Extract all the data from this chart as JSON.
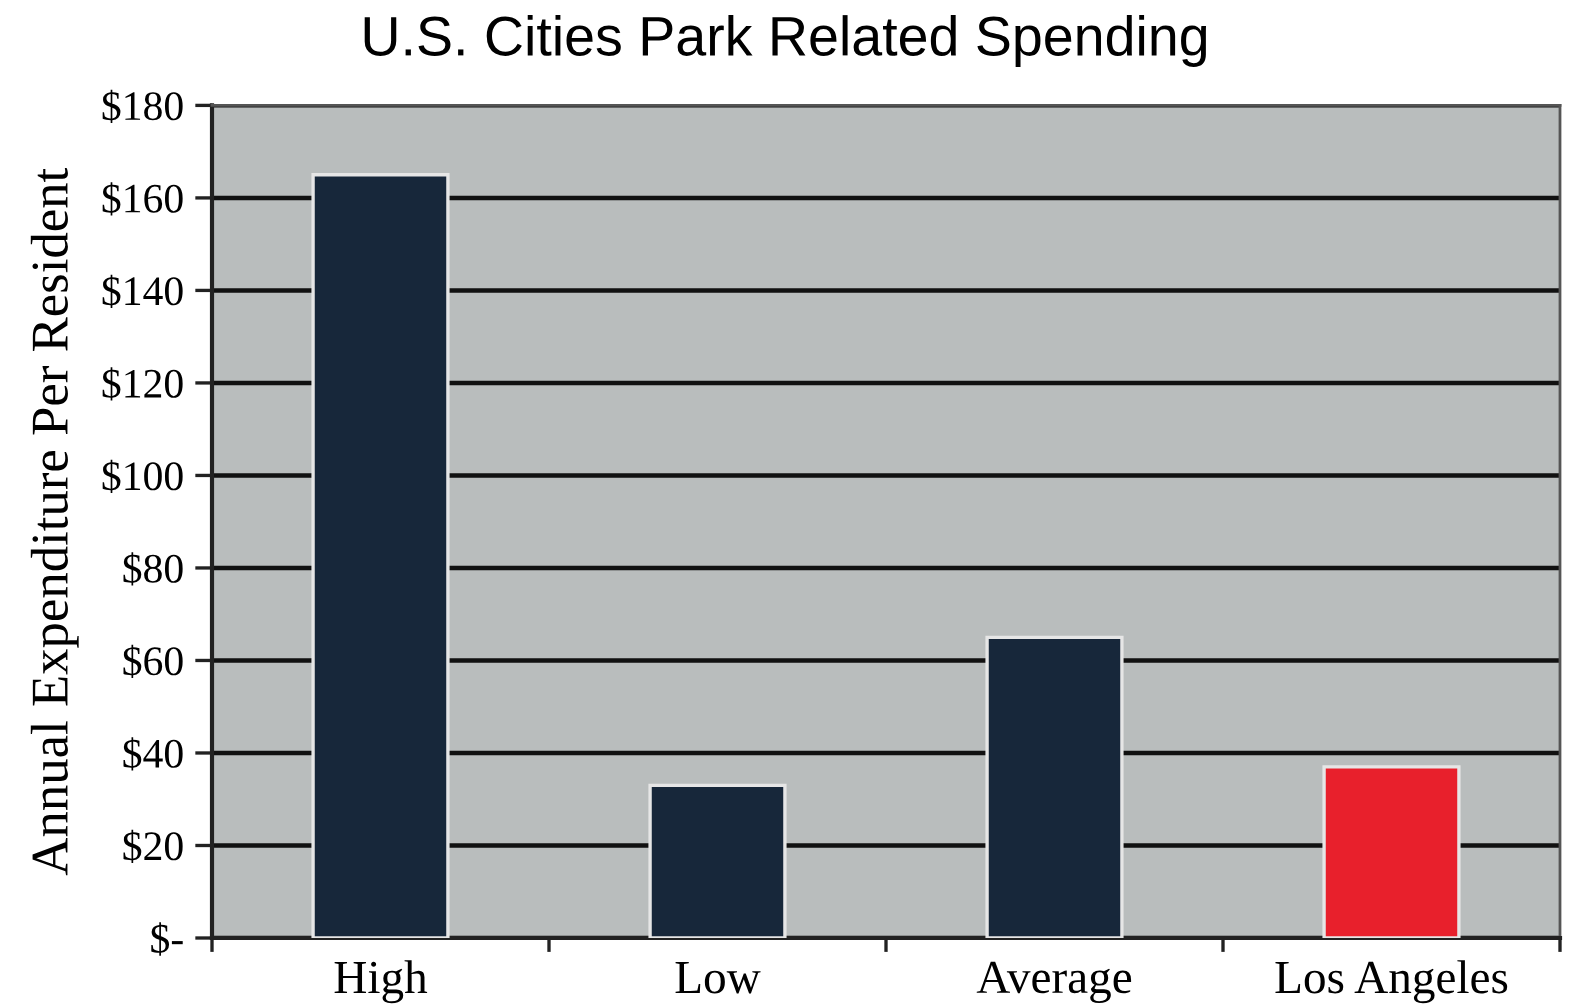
{
  "chart_data": {
    "type": "bar",
    "title": "U.S. Cities Park Related Spending",
    "ylabel": "Annual Expenditure Per Resident",
    "categories": [
      "High",
      "Low",
      "Average",
      "Los Angeles"
    ],
    "values": [
      165,
      33,
      65,
      37
    ],
    "colors": [
      "#17273a",
      "#17273a",
      "#17273a",
      "#e8202c"
    ],
    "ylim": [
      0,
      180
    ],
    "yticks": [
      {
        "value": 0,
        "label": "$-"
      },
      {
        "value": 20,
        "label": "$20"
      },
      {
        "value": 40,
        "label": "$40"
      },
      {
        "value": 60,
        "label": "$60"
      },
      {
        "value": 80,
        "label": "$80"
      },
      {
        "value": 100,
        "label": "$100"
      },
      {
        "value": 120,
        "label": "$120"
      },
      {
        "value": 140,
        "label": "$140"
      },
      {
        "value": 160,
        "label": "$160"
      },
      {
        "value": 180,
        "label": "$180"
      }
    ],
    "grid": "y"
  }
}
